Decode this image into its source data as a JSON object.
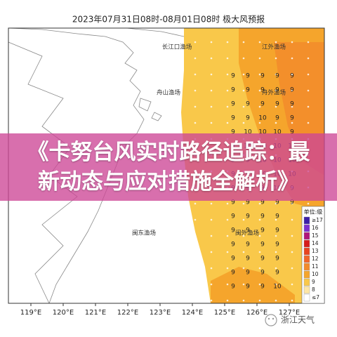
{
  "map": {
    "title": "2023年07月31日08时-08月01日08时 极大风预报",
    "lon_labels": [
      "119°E",
      "120°E",
      "121°E",
      "122°E",
      "123°E",
      "124°E",
      "125°E",
      "126°E",
      "127°E"
    ],
    "fishing_grounds": [
      "长江口渔场",
      "江外渔场",
      "舟山渔场",
      "舟外渔场",
      "闽东渔场",
      "闽外渔场"
    ],
    "wind_grid": [
      [
        "9",
        "9",
        "9",
        "9",
        "9"
      ],
      [
        "9",
        "9",
        "9",
        "9",
        "9"
      ],
      [
        "9",
        "9",
        "9",
        "9",
        "9"
      ],
      [
        "9",
        "9",
        "10",
        "9",
        "9"
      ],
      [
        "9",
        "10",
        "10",
        "10",
        "9"
      ],
      [
        "9",
        "10",
        "10",
        "10",
        "10"
      ],
      [
        "9",
        "9",
        "10",
        "10",
        "10"
      ],
      [
        "9",
        "9",
        "10",
        "10",
        "10"
      ],
      [
        "9",
        "9",
        "9",
        "10",
        "9"
      ],
      [
        "9",
        "9",
        "9",
        "9",
        "9"
      ],
      [
        "9",
        "9",
        "9",
        "9",
        null
      ],
      [
        "9",
        "9",
        "9",
        "9",
        null
      ],
      [
        "9",
        "9",
        "9",
        "9",
        null
      ],
      [
        "9",
        "9",
        "9",
        "9",
        null
      ],
      [
        "9",
        "9",
        "9",
        "9",
        null
      ],
      [
        "9",
        "9",
        "9",
        "10",
        null
      ]
    ],
    "legend": {
      "title": "单位:级",
      "items": [
        {
          "label": "≥17",
          "color": "#3b1fa8"
        },
        {
          "label": "16",
          "color": "#7b2fd0"
        },
        {
          "label": "15",
          "color": "#b0157a"
        },
        {
          "label": "14",
          "color": "#d61c1c"
        },
        {
          "label": "13",
          "color": "#e8431f"
        },
        {
          "label": "12",
          "color": "#f0652a"
        },
        {
          "label": "11",
          "color": "#f28a2c"
        },
        {
          "label": "10",
          "color": "#f5a52c"
        },
        {
          "label": "9",
          "color": "#f9c84a"
        },
        {
          "label": "8",
          "color": "#fde6a6"
        },
        {
          "label": "≤7",
          "color": "#ffffff"
        }
      ]
    },
    "headline": "《卡努台风实时路径追踪：最新动态与应对措施全解析》",
    "watermark": "浙江天气"
  }
}
